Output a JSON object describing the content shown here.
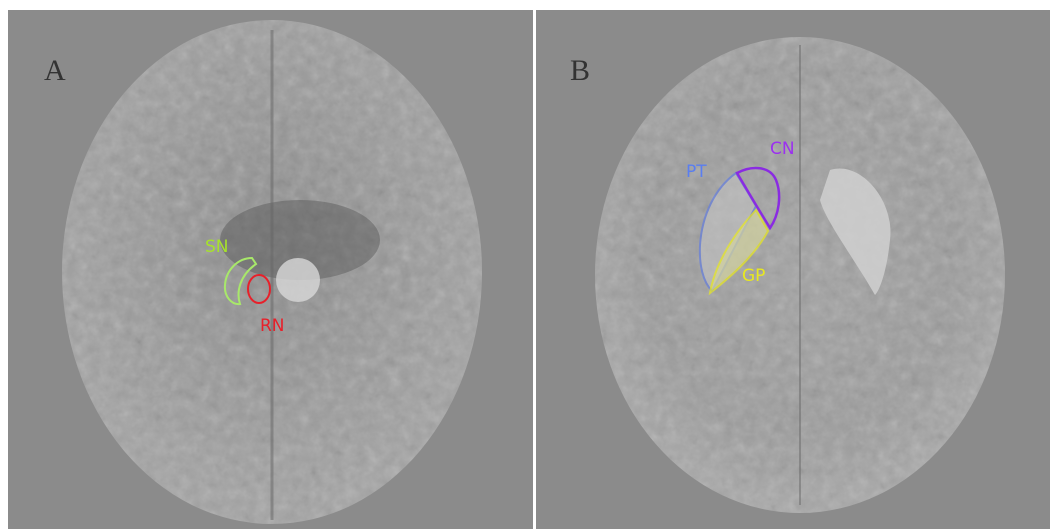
{
  "panels": [
    {
      "letter": "A",
      "regions": [
        "SN",
        "RN"
      ]
    },
    {
      "letter": "B",
      "regions": [
        "PT",
        "CN",
        "GP"
      ]
    }
  ]
}
